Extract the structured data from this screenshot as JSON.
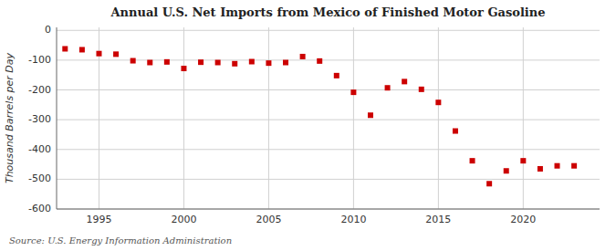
{
  "chart_data": {
    "type": "scatter",
    "title": "Annual U.S. Net Imports from Mexico of Finished Motor Gasoline",
    "ylabel": "Thousand Barrels per Day",
    "source": "Source: U.S. Energy Information Administration",
    "color": "#cc0000",
    "marker": "square",
    "grid": true,
    "xlim": [
      1992.5,
      2024.5
    ],
    "ylim": [
      -600,
      10
    ],
    "yticks": [
      0,
      -100,
      -200,
      -300,
      -400,
      -500,
      -600
    ],
    "xticks": [
      1995,
      2000,
      2005,
      2010,
      2015,
      2020
    ],
    "x": [
      1993,
      1994,
      1995,
      1996,
      1997,
      1998,
      1999,
      2000,
      2001,
      2002,
      2003,
      2004,
      2005,
      2006,
      2007,
      2008,
      2009,
      2010,
      2011,
      2012,
      2013,
      2014,
      2015,
      2016,
      2017,
      2018,
      2019,
      2020,
      2021,
      2022,
      2023
    ],
    "values": [
      -62,
      -65,
      -78,
      -80,
      -102,
      -108,
      -106,
      -128,
      -107,
      -108,
      -112,
      -105,
      -110,
      -108,
      -88,
      -103,
      -152,
      -208,
      -285,
      -193,
      -172,
      -198,
      -242,
      -338,
      -438,
      -515,
      -472,
      -438,
      -465,
      -455,
      -455
    ]
  }
}
